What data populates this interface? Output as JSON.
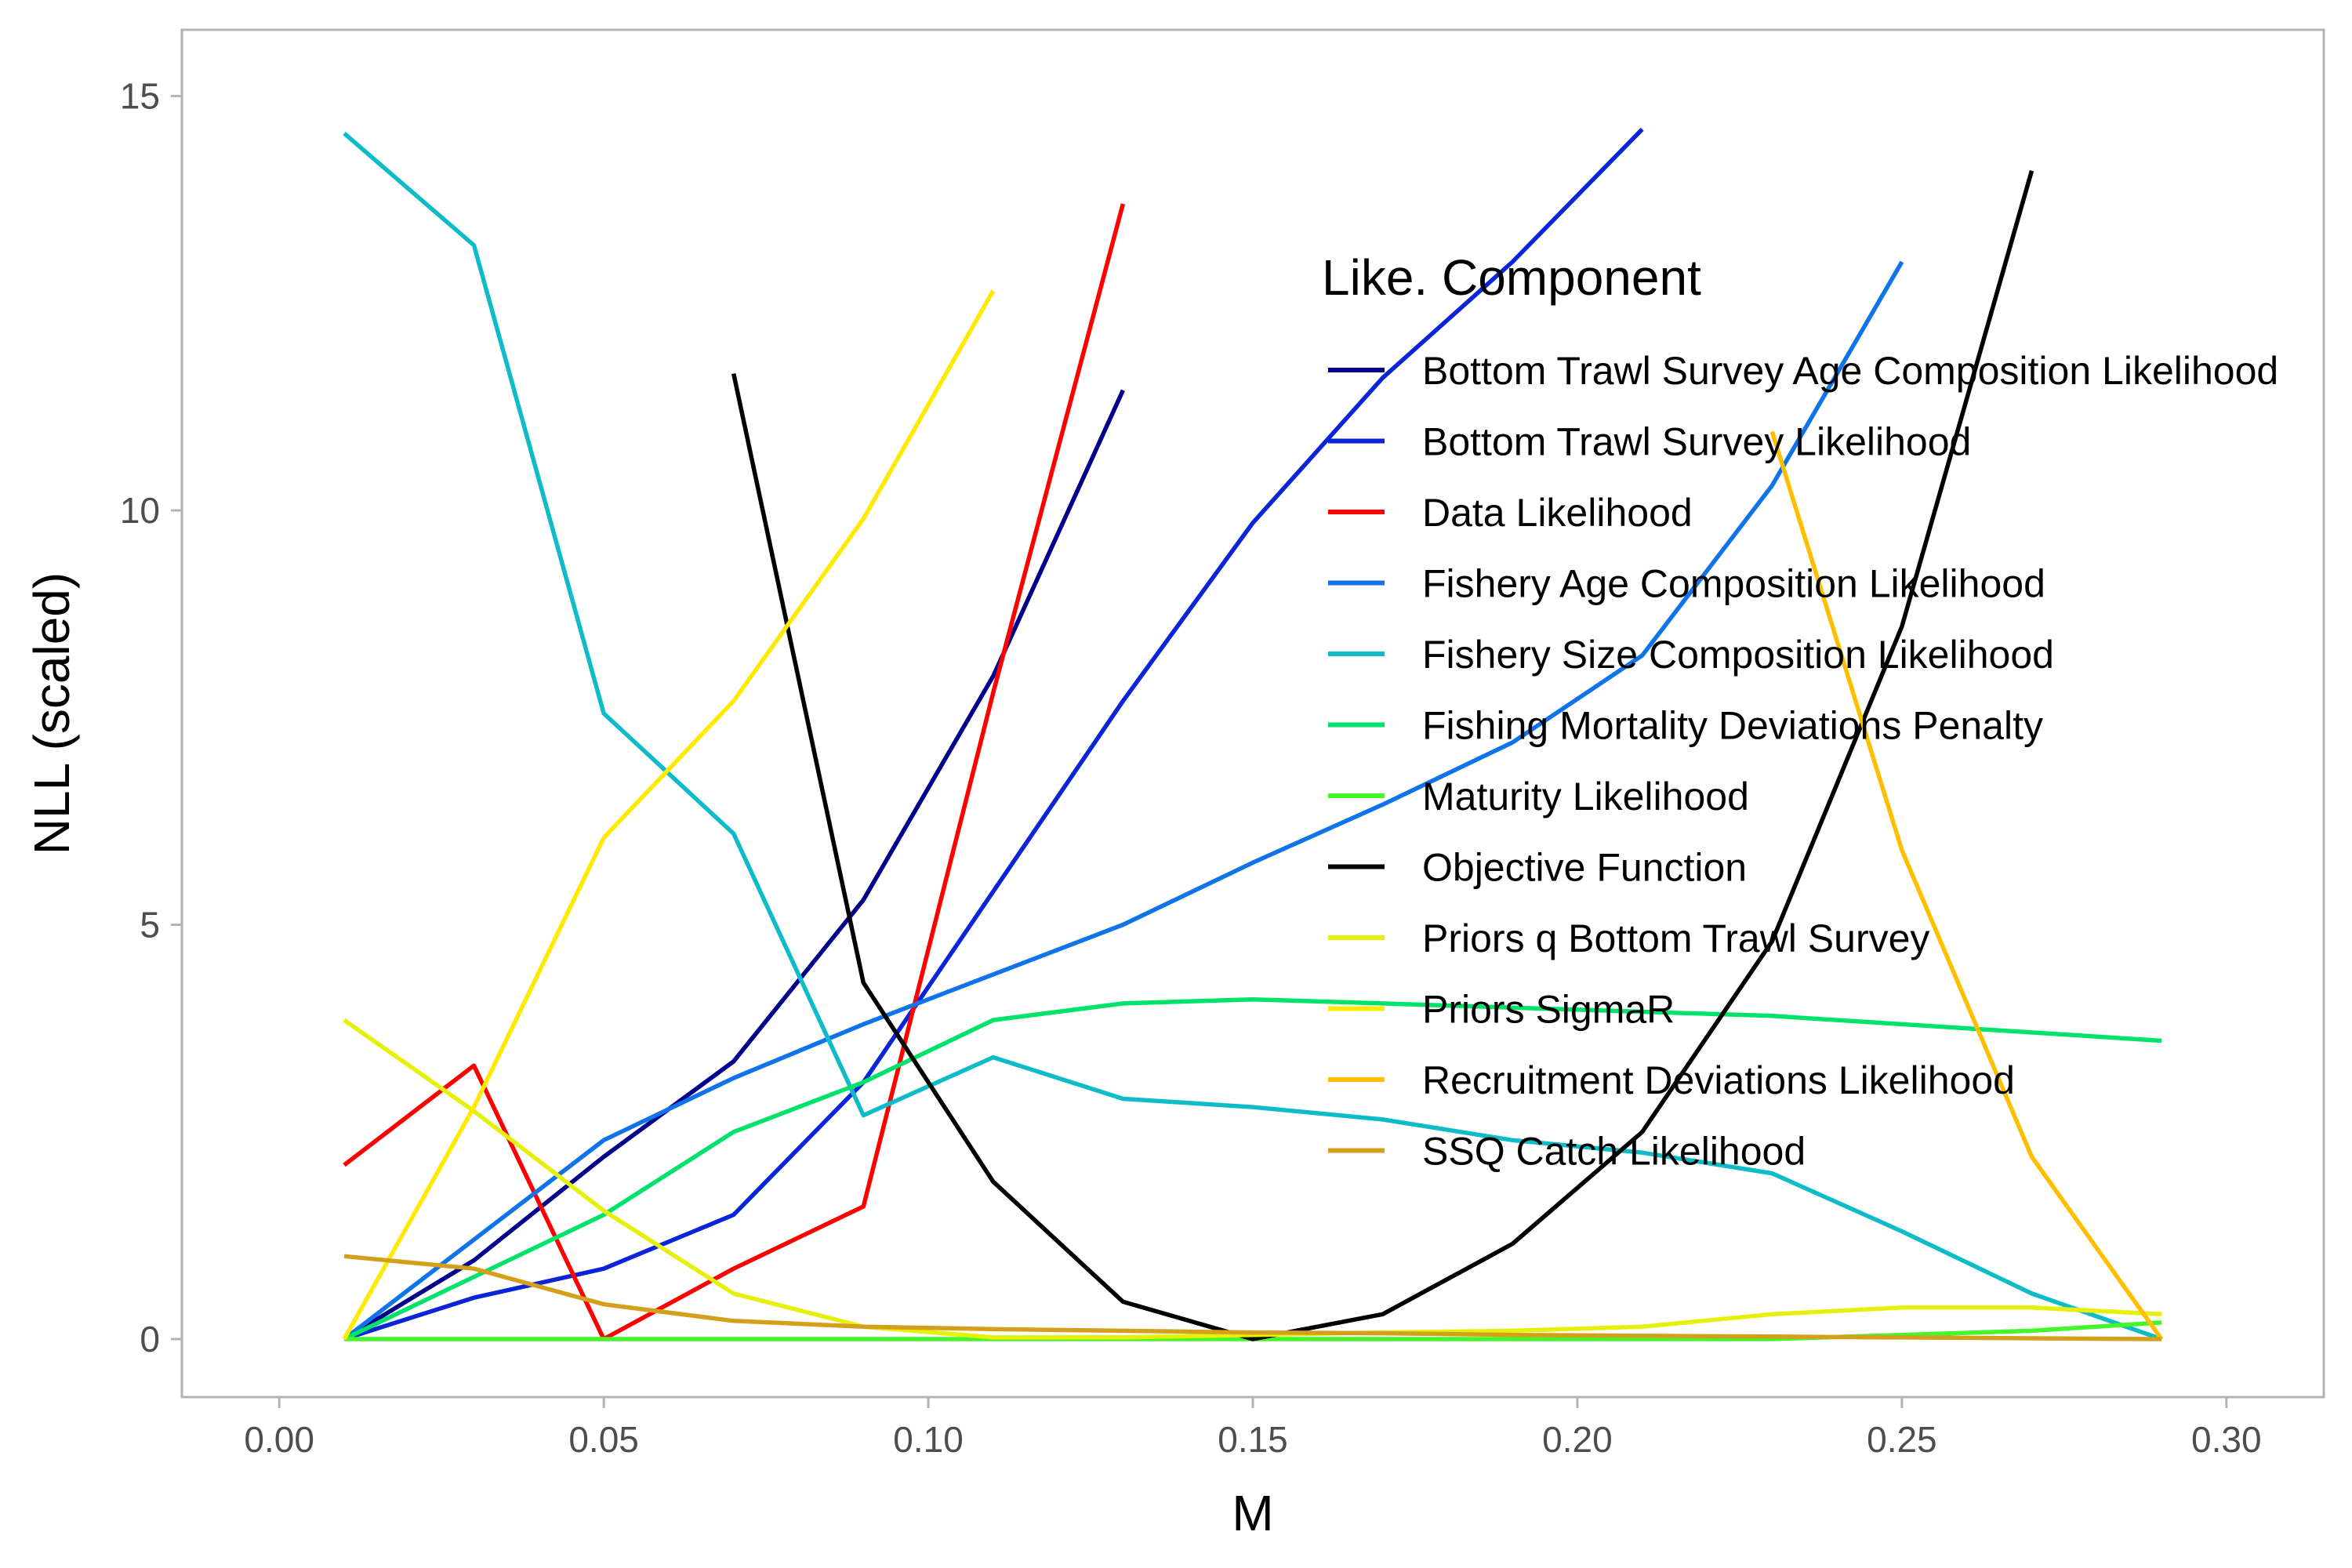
{
  "chart_data": {
    "type": "line",
    "xlabel": "M",
    "ylabel": "NLL (scaled)",
    "xlim": [
      -0.015,
      0.315
    ],
    "ylim": [
      -0.7,
      15.8
    ],
    "x_ticks": [
      0.0,
      0.05,
      0.1,
      0.15,
      0.2,
      0.25,
      0.3
    ],
    "x_tick_labels": [
      "0.00",
      "0.05",
      "0.10",
      "0.15",
      "0.20",
      "0.25",
      "0.30"
    ],
    "y_ticks": [
      0,
      5,
      10,
      15
    ],
    "y_tick_labels": [
      "0",
      "5",
      "10",
      "15"
    ],
    "grid": false,
    "legend": {
      "title": "Like. Component",
      "placement": "top-right, inside plot"
    },
    "series": [
      {
        "name": "Bottom Trawl Survey Age Composition Likelihood",
        "color": "#00008b",
        "x": [
          0.01,
          0.03,
          0.05,
          0.07,
          0.09,
          0.11,
          0.13
        ],
        "y": [
          0,
          0.95,
          2.2,
          3.35,
          5.3,
          8.0,
          11.45
        ]
      },
      {
        "name": "Bottom Trawl Survey Likelihood",
        "color": "#0a24d8",
        "x": [
          0.01,
          0.03,
          0.05,
          0.07,
          0.09,
          0.11,
          0.13,
          0.15,
          0.17,
          0.19,
          0.21
        ],
        "y": [
          0,
          0.5,
          0.85,
          1.5,
          3.1,
          5.4,
          7.7,
          9.85,
          11.6,
          13.0,
          14.6
        ]
      },
      {
        "name": "Data Likelihood",
        "color": "#ff0000",
        "x": [
          0.01,
          0.03,
          0.05,
          0.07,
          0.09,
          0.11,
          0.13
        ],
        "y": [
          2.1,
          3.3,
          0,
          0.85,
          1.6,
          7.8,
          13.7
        ]
      },
      {
        "name": "Fishery Age Composition Likelihood",
        "color": "#0f73ea",
        "x": [
          0.01,
          0.03,
          0.05,
          0.07,
          0.09,
          0.11,
          0.13,
          0.15,
          0.17,
          0.19,
          0.21,
          0.23,
          0.25
        ],
        "y": [
          0,
          1.2,
          2.4,
          3.15,
          3.8,
          4.4,
          5.0,
          5.75,
          6.45,
          7.2,
          8.25,
          10.3,
          13.0
        ]
      },
      {
        "name": "Fishery Size Composition Likelihood",
        "color": "#0dbcc8",
        "x": [
          0.01,
          0.03,
          0.05,
          0.07,
          0.09,
          0.11,
          0.13,
          0.15,
          0.17,
          0.19,
          0.21,
          0.23,
          0.25,
          0.27,
          0.29
        ],
        "y": [
          14.55,
          13.2,
          7.55,
          6.1,
          2.7,
          3.4,
          2.9,
          2.8,
          2.65,
          2.4,
          2.25,
          2.0,
          1.3,
          0.55,
          0
        ]
      },
      {
        "name": "Fishing Mortality Deviations Penalty",
        "color": "#00e36b",
        "x": [
          0.01,
          0.03,
          0.05,
          0.07,
          0.09,
          0.11,
          0.13,
          0.15,
          0.17,
          0.19,
          0.21,
          0.23,
          0.25,
          0.27,
          0.29
        ],
        "y": [
          0,
          0.75,
          1.5,
          2.5,
          3.1,
          3.85,
          4.05,
          4.1,
          4.05,
          4.0,
          3.95,
          3.9,
          3.8,
          3.7,
          3.6
        ]
      },
      {
        "name": "Maturity Likelihood",
        "color": "#44f62a",
        "x": [
          0.01,
          0.03,
          0.05,
          0.07,
          0.09,
          0.11,
          0.13,
          0.15,
          0.17,
          0.19,
          0.21,
          0.23,
          0.25,
          0.27,
          0.29
        ],
        "y": [
          0,
          0,
          0,
          0,
          0,
          0,
          0,
          0,
          0,
          0,
          0,
          0,
          0.05,
          0.1,
          0.2
        ]
      },
      {
        "name": "Objective Function",
        "color": "#000000",
        "x": [
          0.07,
          0.09,
          0.11,
          0.13,
          0.15,
          0.17,
          0.19,
          0.21,
          0.23,
          0.25,
          0.27
        ],
        "y": [
          11.65,
          4.3,
          1.9,
          0.45,
          0,
          0.3,
          1.15,
          2.5,
          4.8,
          8.6,
          14.1
        ]
      },
      {
        "name": "Priors q Bottom Trawl Survey",
        "color": "#e6f00a",
        "x": [
          0.01,
          0.03,
          0.05,
          0.07,
          0.09,
          0.11,
          0.13,
          0.15,
          0.17,
          0.19,
          0.21,
          0.23,
          0.25,
          0.27,
          0.29
        ],
        "y": [
          3.85,
          2.75,
          1.55,
          0.55,
          0.15,
          0.02,
          0.02,
          0.05,
          0.08,
          0.1,
          0.15,
          0.3,
          0.38,
          0.38,
          0.3
        ]
      },
      {
        "name": "Priors SigmaR",
        "color": "#ffea00",
        "x": [
          0.01,
          0.03,
          0.05,
          0.07,
          0.09,
          0.11
        ],
        "y": [
          0,
          2.8,
          6.05,
          7.7,
          9.9,
          12.65
        ]
      },
      {
        "name": "Recruitment Deviations Likelihood",
        "color": "#ffbf00",
        "x": [
          0.23,
          0.25,
          0.27,
          0.29
        ],
        "y": [
          10.95,
          5.9,
          2.2,
          0
        ]
      },
      {
        "name": "SSQ Catch Likelihood",
        "color": "#d4a01c",
        "x": [
          0.01,
          0.03,
          0.05,
          0.07,
          0.09,
          0.11,
          0.13,
          0.15,
          0.17,
          0.19,
          0.21,
          0.23,
          0.25,
          0.27,
          0.29
        ],
        "y": [
          1.0,
          0.85,
          0.42,
          0.22,
          0.15,
          0.12,
          0.1,
          0.08,
          0.07,
          0.05,
          0.04,
          0.03,
          0.02,
          0.01,
          0
        ]
      }
    ]
  }
}
